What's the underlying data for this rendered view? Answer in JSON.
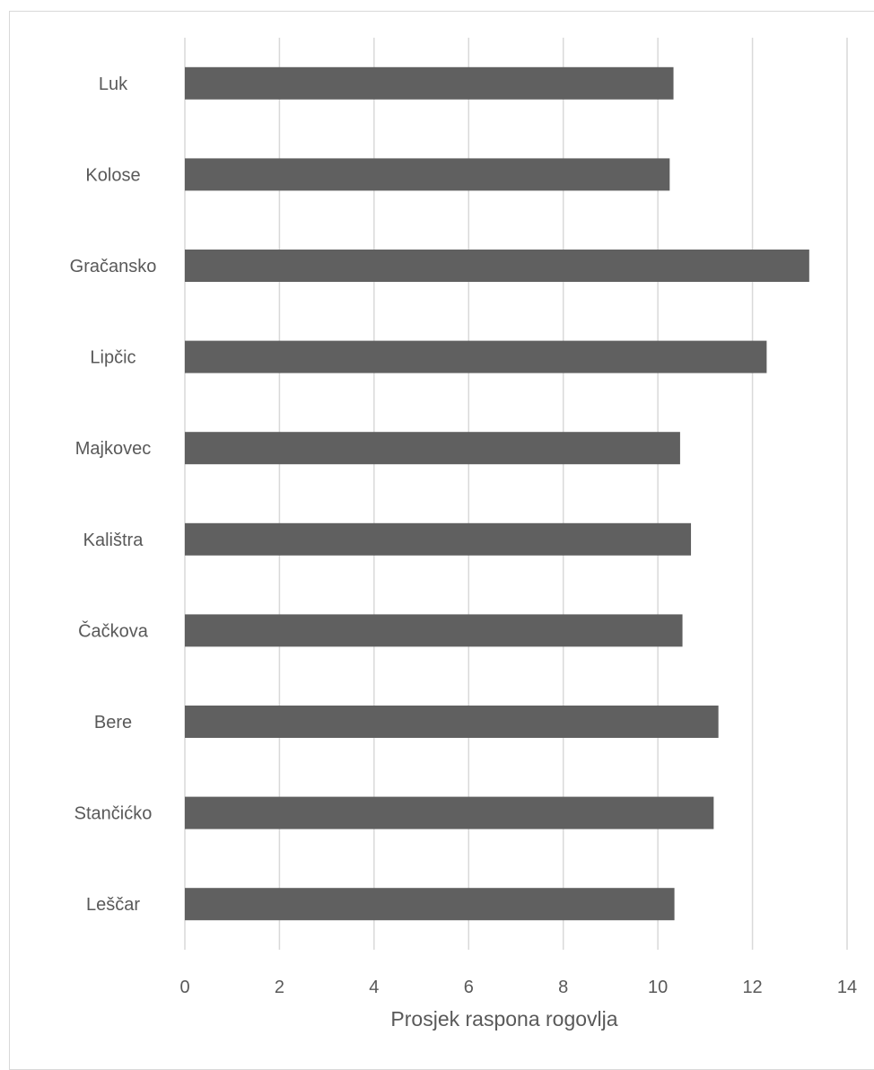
{
  "chart_data": {
    "type": "bar",
    "orientation": "horizontal",
    "categories": [
      "Luk",
      "Kolose",
      "Gračansko",
      "Lipčic",
      "Majkovec",
      "Kalištra",
      "Čačkova",
      "Bere",
      "Stančićko",
      "Leščar"
    ],
    "values": [
      10.33,
      10.25,
      13.2,
      12.3,
      10.47,
      10.7,
      10.52,
      11.28,
      11.18,
      10.35
    ],
    "xlabel": "Prosjek raspona rogovlja",
    "ylabel": "",
    "xlim": [
      0,
      14
    ],
    "xticks": [
      0,
      2,
      4,
      6,
      8,
      10,
      12,
      14
    ],
    "grid": "vertical",
    "bar_color": "#606060",
    "grid_color": "#d9d9d9",
    "text_color": "#595959"
  }
}
